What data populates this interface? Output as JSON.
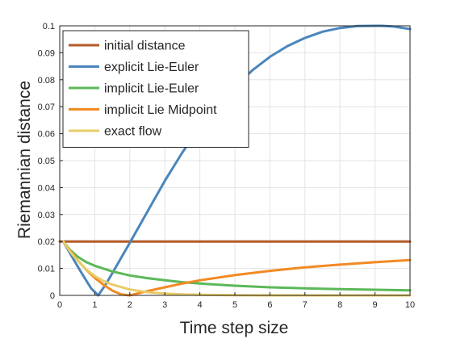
{
  "chart_data": {
    "type": "line",
    "xlabel": "Time step size",
    "ylabel": "Riemannian distance",
    "xlim": [
      0,
      10
    ],
    "ylim": [
      0,
      0.1
    ],
    "xticks": [
      "0",
      "1",
      "2",
      "3",
      "4",
      "5",
      "6",
      "7",
      "8",
      "9",
      "10"
    ],
    "yticks": [
      "0",
      "0.01",
      "0.02",
      "0.03",
      "0.04",
      "0.05",
      "0.06",
      "0.07",
      "0.08",
      "0.09",
      "0.1"
    ],
    "grid": true,
    "legend_position": "top-left",
    "series": [
      {
        "name": "initial distance",
        "color": "#b45a2a",
        "x": [
          0,
          10
        ],
        "y": [
          0.02,
          0.02
        ]
      },
      {
        "name": "explicit Lie-Euler",
        "color": "#4a86bd",
        "x": [
          0.1,
          0.3,
          0.5,
          0.7,
          0.9,
          1.1,
          1.3,
          1.5,
          2.0,
          2.5,
          3.0,
          3.5,
          4.0,
          4.5,
          5.0,
          5.5,
          6.0,
          6.5,
          7.0,
          7.5,
          8.0,
          8.5,
          9.0,
          9.2,
          9.5,
          10.0
        ],
        "y": [
          0.02,
          0.0155,
          0.011,
          0.0067,
          0.0025,
          0.0,
          0.0038,
          0.0082,
          0.0195,
          0.031,
          0.0425,
          0.053,
          0.0625,
          0.0705,
          0.0775,
          0.0835,
          0.0885,
          0.0925,
          0.0955,
          0.0978,
          0.0992,
          0.0999,
          0.1,
          0.1,
          0.0998,
          0.0988
        ]
      },
      {
        "name": "implicit Lie-Euler",
        "color": "#5cb858",
        "x": [
          0.1,
          0.3,
          0.5,
          0.75,
          1.0,
          1.5,
          2.0,
          2.5,
          3.0,
          3.5,
          4.0,
          5.0,
          6.0,
          7.0,
          8.0,
          9.0,
          10.0
        ],
        "y": [
          0.02,
          0.0168,
          0.0145,
          0.0124,
          0.011,
          0.0089,
          0.0074,
          0.0064,
          0.0056,
          0.0049,
          0.0044,
          0.0036,
          0.003,
          0.0026,
          0.0023,
          0.0021,
          0.0019
        ]
      },
      {
        "name": "implicit Lie Midpoint",
        "color": "#f28a23",
        "x": [
          0.1,
          0.3,
          0.5,
          0.75,
          1.0,
          1.25,
          1.5,
          1.75,
          2.0,
          2.25,
          2.5,
          3.0,
          3.5,
          4.0,
          5.0,
          6.0,
          7.0,
          8.0,
          9.0,
          10.0
        ],
        "y": [
          0.02,
          0.0165,
          0.0132,
          0.0096,
          0.0065,
          0.0039,
          0.0018,
          0.0004,
          0.0,
          0.0008,
          0.0016,
          0.003,
          0.0044,
          0.0056,
          0.0075,
          0.0091,
          0.0104,
          0.0114,
          0.0123,
          0.0131
        ]
      },
      {
        "name": "exact flow",
        "color": "#e8cc68",
        "x": [
          0.1,
          0.3,
          0.5,
          0.75,
          1.0,
          1.25,
          1.5,
          2.0,
          2.5,
          3.0,
          3.5,
          4.0,
          5.0,
          6.0,
          7.0,
          8.0,
          9.0,
          10.0
        ],
        "y": [
          0.02,
          0.0162,
          0.013,
          0.0097,
          0.0072,
          0.0053,
          0.004,
          0.0022,
          0.0012,
          0.0007,
          0.0004,
          0.0002,
          0.0001,
          0.0,
          0.0,
          0.0,
          0.0,
          0.0
        ]
      }
    ]
  }
}
